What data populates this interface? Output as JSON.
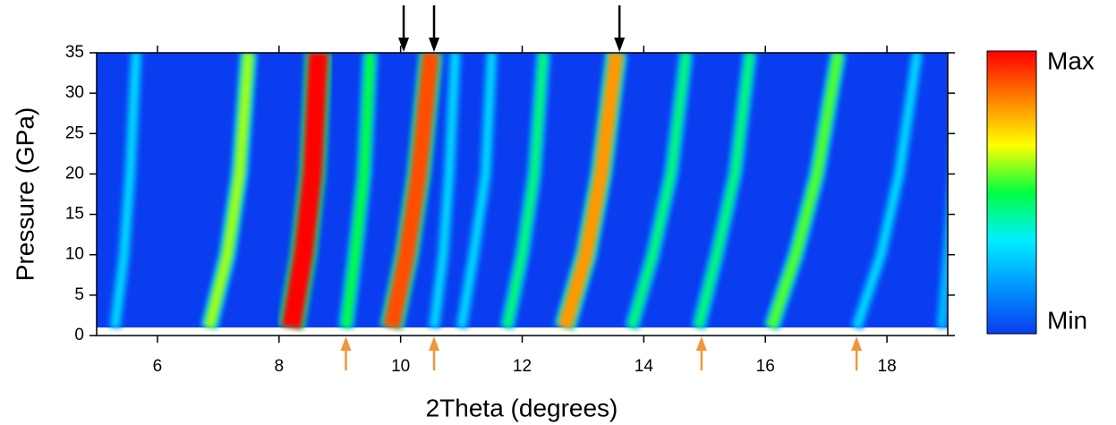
{
  "chart_data": {
    "type": "contour",
    "xlabel": "2Theta (degrees)",
    "ylabel": "Pressure (GPa)",
    "xlim": [
      5,
      19
    ],
    "ylim": [
      0,
      35
    ],
    "xticks": [
      6,
      8,
      10,
      12,
      14,
      16,
      18
    ],
    "yticks": [
      0,
      5,
      10,
      15,
      20,
      25,
      30,
      35
    ],
    "colorbar_labels": {
      "max": "Max",
      "min": "Min"
    },
    "colormap": [
      "#0a3cf0",
      "#0096ff",
      "#00f0ff",
      "#00ff40",
      "#ffff00",
      "#ff8000",
      "#ff0000"
    ],
    "pressures": [
      1,
      10,
      20,
      35
    ],
    "peaks": [
      {
        "x": [
          5.3,
          5.45,
          5.55,
          5.65
        ],
        "intensity": 0.3
      },
      {
        "x": [
          6.85,
          7.15,
          7.35,
          7.5
        ],
        "intensity": 0.6
      },
      {
        "x": [
          8.2,
          8.4,
          8.55,
          8.65
        ],
        "intensity": 1
      },
      {
        "x": [
          9.1,
          9.25,
          9.4,
          9.5
        ],
        "intensity": 0.5
      },
      {
        "x": [
          9.85,
          10.1,
          10.3,
          10.5
        ],
        "intensity": 0.9
      },
      {
        "x": [
          10.55,
          10.7,
          10.8,
          10.9
        ],
        "intensity": 0.3
      },
      {
        "x": [
          11.0,
          11.2,
          11.4,
          11.5
        ],
        "intensity": 0.3
      },
      {
        "x": [
          11.75,
          12.0,
          12.2,
          12.35
        ],
        "intensity": 0.45
      },
      {
        "x": [
          12.7,
          13.05,
          13.3,
          13.55
        ],
        "intensity": 0.8
      },
      {
        "x": [
          13.8,
          14.15,
          14.45,
          14.7
        ],
        "intensity": 0.45
      },
      {
        "x": [
          14.9,
          15.2,
          15.5,
          15.75
        ],
        "intensity": 0.45
      },
      {
        "x": [
          16.1,
          16.5,
          16.85,
          17.2
        ],
        "intensity": 0.55
      },
      {
        "x": [
          17.5,
          17.9,
          18.2,
          18.5
        ],
        "intensity": 0.3
      },
      {
        "x": [
          18.9,
          19.0,
          19.1,
          19.2
        ],
        "intensity": 0.25
      }
    ],
    "arrows_top": {
      "color": "#000000",
      "x": [
        10.05,
        10.55,
        13.6
      ]
    },
    "arrows_bottom": {
      "color": "#f0963c",
      "x": [
        9.1,
        10.55,
        14.95,
        17.5
      ]
    }
  }
}
